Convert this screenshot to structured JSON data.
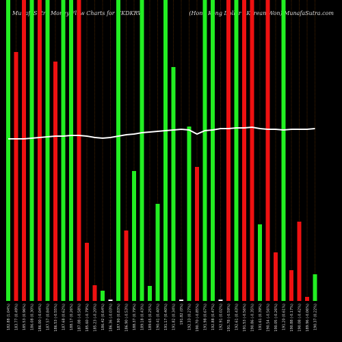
{
  "chart_data": {
    "type": "bar",
    "title": "MunafaSutra Money Flow Charts for HKDKRW",
    "subtitle": "(Hong Kong Dollar / Korean Won) MunafaSutra.com",
    "ylim": [
      0,
      440
    ],
    "categories": [
      "182.88 (1.04%)",
      "183.77 (0.49%)",
      "185.53 (0.96%)",
      "186.08 (0.30%)",
      "186.00 (-0.04%)",
      "187.57 (0.84%)",
      "186.53 (-0.55%)",
      "187.68 (0.62%)",
      "188.17 (0.26%)",
      "187.08 (-0.58%)",
      "185.60 (-0.79%)",
      "185.23 (-0.20%)",
      "186.42 (0.64%)",
      "186.36 (-0.03%)",
      "187.90 (0.83%)",
      "186.90 (-0.53%)",
      "188.37 (0.79%)",
      "189.18 (0.43%)",
      "189.65 (0.25%)",
      "190.41 (0.40%)",
      "191.17 (0.40%)",
      "191.82 (0.34%)",
      "191.82 (0%)",
      "192.33 (0.27%)",
      "190.70 (-0.85%)",
      "191.98 (0.67%)",
      "192.88 (0.47%)",
      "192.91 (0.02%)",
      "191.78 (-0.59%)",
      "192.61 (0.43%)",
      "191.53 (-0.56%)",
      "190.86 (-0.35%)",
      "191.61 (0.39%)",
      "190.54 (-0.56%)",
      "190.05 (-0.26%)",
      "191.20 (0.61%)",
      "190.88 (-0.17%)",
      "190.08 (-0.42%)",
      "189.96 (-0.06%)",
      "190.37 (0.22%)"
    ],
    "values": [
      440,
      364,
      440,
      440,
      440,
      440,
      350,
      440,
      440,
      440,
      85,
      23,
      15,
      2,
      440,
      103,
      190,
      440,
      22,
      142,
      440,
      342,
      2,
      255,
      196,
      440,
      440,
      2,
      440,
      440,
      440,
      440,
      112,
      440,
      71,
      440,
      45,
      116,
      6,
      39
    ],
    "bar_colors": [
      "#22ee22",
      "#ee1111",
      "#ee1111",
      "#22ee22",
      "#ee1111",
      "#22ee22",
      "#ee1111",
      "#22ee22",
      "#22ee22",
      "#ee1111",
      "#ee1111",
      "#ee1111",
      "#22ee22",
      "#ffffff",
      "#22ee22",
      "#ee1111",
      "#22ee22",
      "#22ee22",
      "#22ee22",
      "#22ee22",
      "#22ee22",
      "#22ee22",
      "#ffffff",
      "#22ee22",
      "#ee1111",
      "#22ee22",
      "#22ee22",
      "#ffffff",
      "#ee1111",
      "#22ee22",
      "#ee1111",
      "#ee1111",
      "#22ee22",
      "#ee1111",
      "#ee1111",
      "#22ee22",
      "#ee1111",
      "#ee1111",
      "#ee1111",
      "#22ee22"
    ],
    "line_values": [
      237,
      237,
      237,
      238,
      239,
      240,
      241,
      241,
      242,
      242,
      241,
      239,
      238,
      239,
      241,
      243,
      244,
      246,
      247,
      248,
      249,
      250,
      251,
      250,
      244,
      249,
      250,
      252,
      252,
      253,
      253,
      254,
      252,
      251,
      251,
      250,
      251,
      251,
      251,
      252
    ],
    "line_color": "#ffffff",
    "grid_color": "#7a3e00"
  }
}
